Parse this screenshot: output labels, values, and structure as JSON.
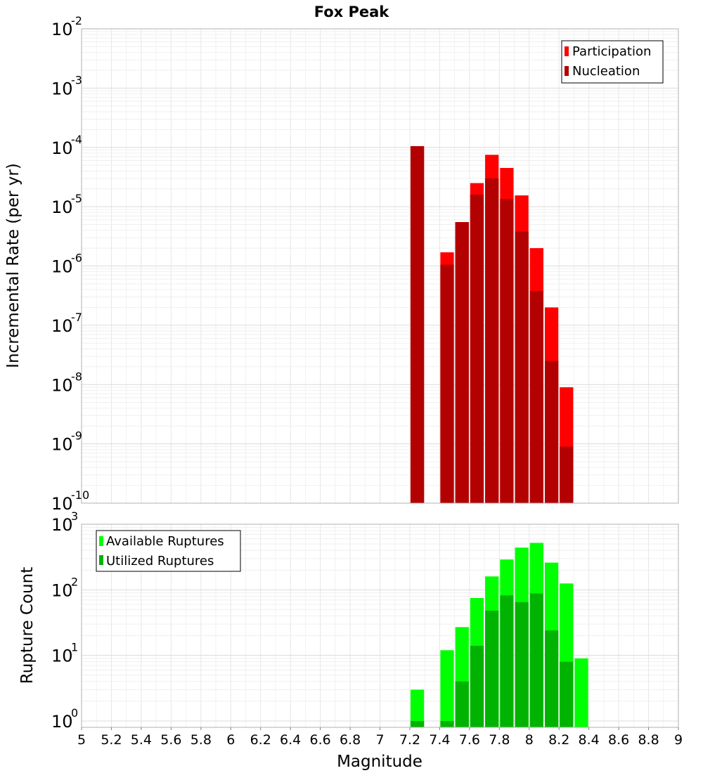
{
  "chart_data": [
    {
      "type": "bar",
      "title": "Fox Peak",
      "ylabel": "Incremental Rate (per yr)",
      "yscale": "log",
      "ylim_exponents": [
        -10,
        -2
      ],
      "xlim": [
        5,
        9
      ],
      "bin_width": 0.1,
      "legend": {
        "placement": "top-right",
        "entries": [
          "Participation",
          "Nucleation"
        ]
      },
      "series": [
        {
          "name": "Participation",
          "color": "#ff0000",
          "x": [
            7.25,
            7.45,
            7.55,
            7.65,
            7.75,
            7.85,
            7.95,
            8.05,
            8.15,
            8.25
          ],
          "values": [
            0.000105,
            1.7e-06,
            5.5e-06,
            2.5e-05,
            7.5e-05,
            4.5e-05,
            1.55e-05,
            2e-06,
            2e-07,
            9e-09
          ]
        },
        {
          "name": "Nucleation",
          "color": "#b30000",
          "x": [
            7.25,
            7.45,
            7.55,
            7.65,
            7.75,
            7.85,
            7.95,
            8.05,
            8.15,
            8.25
          ],
          "values": [
            0.000105,
            1.05e-06,
            5.5e-06,
            1.6e-05,
            3e-05,
            1.35e-05,
            3.8e-06,
            3.8e-07,
            2.5e-08,
            9e-10
          ]
        }
      ]
    },
    {
      "type": "bar",
      "ylabel": "Rupture Count",
      "xlabel": "Magnitude",
      "yscale": "log",
      "ylim_exponents": [
        0,
        3
      ],
      "ymin": 0.8,
      "xlim": [
        5,
        9
      ],
      "bin_width": 0.1,
      "x_ticks": [
        "5",
        "5.2",
        "5.4",
        "5.6",
        "5.8",
        "6",
        "6.2",
        "6.4",
        "6.6",
        "6.8",
        "7",
        "7.2",
        "7.4",
        "7.6",
        "7.8",
        "8",
        "8.2",
        "8.4",
        "8.6",
        "8.8",
        "9"
      ],
      "legend": {
        "placement": "top-left",
        "entries": [
          "Available Ruptures",
          "Utilized Ruptures"
        ]
      },
      "series": [
        {
          "name": "Available Ruptures",
          "color": "#00ff00",
          "x": [
            7.25,
            7.45,
            7.55,
            7.65,
            7.75,
            7.85,
            7.95,
            8.05,
            8.15,
            8.25,
            8.35
          ],
          "values": [
            3,
            12,
            27,
            75,
            160,
            290,
            440,
            520,
            260,
            125,
            9
          ]
        },
        {
          "name": "Utilized Ruptures",
          "color": "#00b300",
          "x": [
            7.25,
            7.45,
            7.55,
            7.65,
            7.75,
            7.85,
            7.95,
            8.05,
            8.15,
            8.25
          ],
          "values": [
            1,
            1,
            4,
            14,
            48,
            82,
            65,
            88,
            24,
            8
          ]
        }
      ]
    }
  ]
}
